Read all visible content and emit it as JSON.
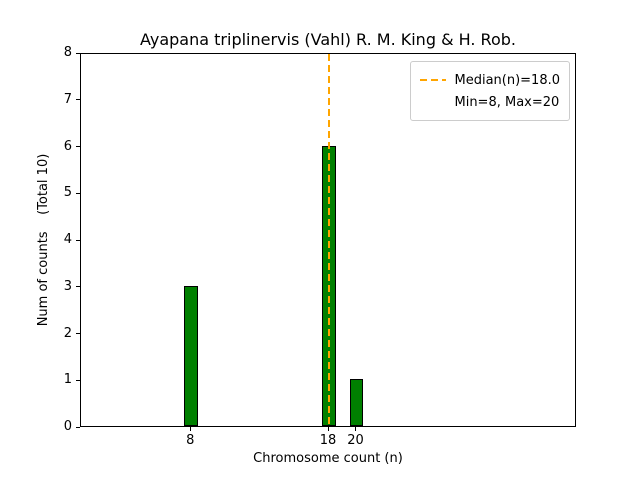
{
  "chart_data": {
    "type": "bar",
    "title": "Ayapana triplinervis (Vahl) R. M. King & H. Rob.",
    "xlabel": "Chromosome count (n)",
    "ylabel": "Num of counts    (Total 10)",
    "x": [
      8,
      18,
      20
    ],
    "values": [
      3,
      6,
      1
    ],
    "total_counts": 10,
    "median": 18.0,
    "min": 8,
    "max": 20,
    "xlim": [
      0,
      36
    ],
    "ylim": [
      0,
      8
    ],
    "xticks": [
      8,
      18,
      20
    ],
    "yticks": [
      0,
      1,
      2,
      3,
      4,
      5,
      6,
      7,
      8
    ],
    "bar_width_units": 1.0,
    "bar_color": "#008000",
    "bar_edge_color": "#000000",
    "median_line_color": "#FFA500",
    "legend": [
      "Median(n)=18.0",
      "Min=8, Max=20"
    ],
    "legend_position": "upper right",
    "grid": false
  }
}
